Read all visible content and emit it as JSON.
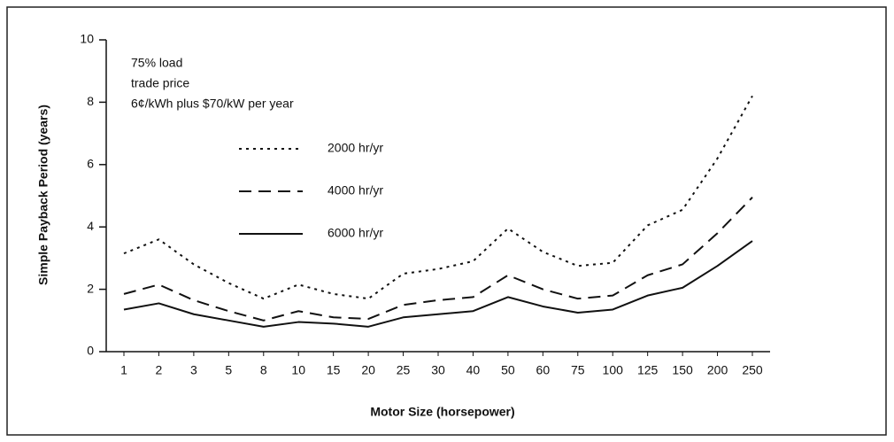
{
  "chart_data": {
    "type": "line",
    "x_label": "Motor Size (horsepower)",
    "y_label": "Simple Payback Period (years)",
    "annotations": [
      "75% load",
      "trade price",
      "6¢/kWh plus $70/kW per year"
    ],
    "categories": [
      "1",
      "2",
      "3",
      "5",
      "8",
      "10",
      "15",
      "20",
      "25",
      "30",
      "40",
      "50",
      "60",
      "75",
      "100",
      "125",
      "150",
      "200",
      "250"
    ],
    "series": [
      {
        "name": "2000 hr/yr",
        "color": "#111111",
        "linestyle": "dotted",
        "values": [
          3.15,
          3.6,
          2.8,
          2.2,
          1.7,
          2.15,
          1.85,
          1.7,
          2.5,
          2.65,
          2.9,
          3.95,
          3.2,
          2.75,
          2.85,
          4.05,
          4.55,
          6.2,
          8.2
        ]
      },
      {
        "name": "4000 hr/yr",
        "color": "#111111",
        "linestyle": "dashed",
        "values": [
          1.85,
          2.15,
          1.65,
          1.3,
          1.0,
          1.3,
          1.1,
          1.05,
          1.5,
          1.65,
          1.75,
          2.45,
          2.0,
          1.7,
          1.8,
          2.45,
          2.8,
          3.8,
          4.95
        ]
      },
      {
        "name": "6000 hr/yr",
        "color": "#111111",
        "linestyle": "solid",
        "values": [
          1.35,
          1.55,
          1.2,
          1.0,
          0.8,
          0.95,
          0.9,
          0.8,
          1.1,
          1.2,
          1.3,
          1.75,
          1.45,
          1.25,
          1.35,
          1.8,
          2.05,
          2.75,
          3.55
        ]
      }
    ],
    "ylim": [
      0,
      10
    ],
    "yticks": [
      0,
      2,
      4,
      6,
      8,
      10
    ],
    "grid": false,
    "legend": "upper left"
  }
}
